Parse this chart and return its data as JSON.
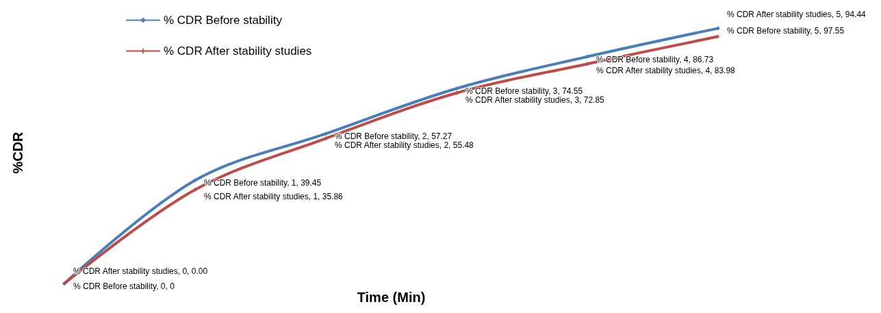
{
  "chart_data": {
    "type": "line",
    "xlabel": "Time (Min)",
    "ylabel": "%CDR",
    "categories": [
      null,
      null,
      null,
      null,
      null,
      null
    ],
    "legend": "top left",
    "tick_labels": false,
    "grid": false,
    "series": [
      {
        "name": "% CDR Before stability",
        "color": "#4a7ebb",
        "marker": "diamond",
        "values": [
          0,
          39.45,
          57.27,
          74.55,
          86.73,
          97.55
        ],
        "value_labels": [
          "% CDR Before stability, 0, 0",
          "% CDR Before stability, 1, 39.45",
          "% CDR Before stability, 2, 57.27",
          "% CDR Before stability, 3, 74.55",
          "% CDR Before stability, 4, 86.73",
          "% CDR Before stability, 5, 97.55"
        ]
      },
      {
        "name": "% CDR After stability studies",
        "color": "#be4b48",
        "marker": "cross",
        "values": [
          0.0,
          35.86,
          55.48,
          72.85,
          83.98,
          94.44
        ],
        "value_labels": [
          "% CDR After stability studies, 0, 0.00",
          "% CDR After stability studies, 1, 35.86",
          "% CDR After stability studies, 2, 55.48",
          "% CDR After stability studies, 3, 72.85",
          "% CDR After stability studies, 4, 83.98",
          "% CDR After stability studies, 5, 94.44"
        ]
      }
    ]
  }
}
